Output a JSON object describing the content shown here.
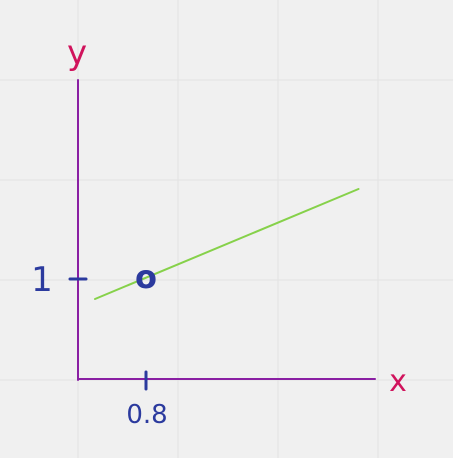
{
  "colors": {
    "background": "#f0f0f0",
    "grid": "#e2e2e2",
    "axis": "#8a1fa3",
    "axis_letter": "#d0135c",
    "ink": "#2b3a9e",
    "line": "#86d14a"
  },
  "chart_data": {
    "type": "line",
    "title": "",
    "xlabel": "x",
    "ylabel": "y",
    "grid": true,
    "xlim": [
      0,
      3.4
    ],
    "ylim": [
      0,
      1.5
    ],
    "x_ticks": [
      {
        "value": 0.8,
        "label": "0.8"
      }
    ],
    "y_ticks": [
      {
        "value": 1,
        "label": "1"
      }
    ],
    "series": [
      {
        "x": [
          0.2,
          3.3
        ],
        "y": [
          0.8,
          1.9
        ]
      }
    ],
    "annotations": [
      {
        "text": "o",
        "x": 0.8,
        "y": 1
      }
    ]
  }
}
